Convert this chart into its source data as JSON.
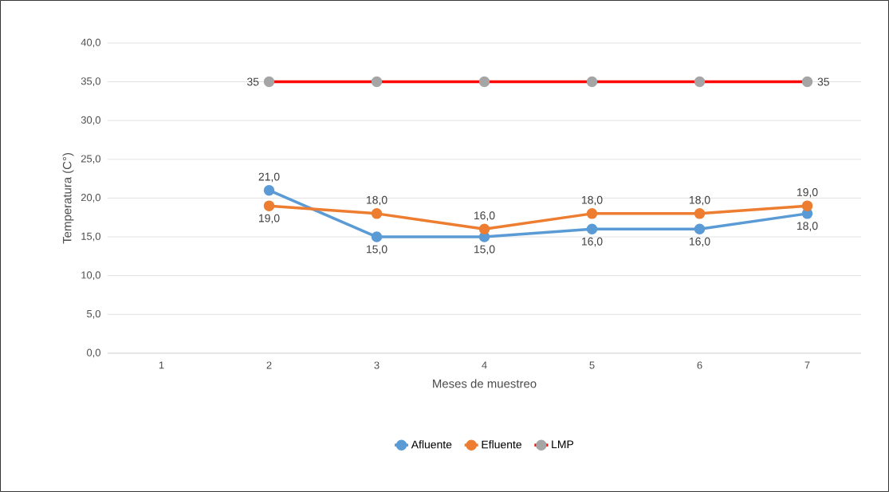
{
  "chart_data": {
    "type": "line",
    "xlabel": "Meses de muestreo",
    "ylabel": "Temperatura (C°)",
    "categories": [
      "1",
      "2",
      "3",
      "4",
      "5",
      "6",
      "7"
    ],
    "series": [
      {
        "name": "Afluente",
        "color": "#5b9bd5",
        "values": [
          null,
          21,
          15,
          15,
          16,
          16,
          18
        ],
        "value_labels": [
          null,
          "21,0",
          "15,0",
          "15,0",
          "16,0",
          "16,0",
          "18,0"
        ]
      },
      {
        "name": "Efluente",
        "color": "#ed7d31",
        "values": [
          null,
          19,
          18,
          16,
          18,
          18,
          19
        ],
        "value_labels": [
          null,
          "19,0",
          "18,0",
          "16,0",
          "18,0",
          "18,0",
          "19,0"
        ]
      },
      {
        "name": "LMP",
        "color": "#ff0000",
        "colors": [
          null,
          "#a5a5a5",
          "#a5a5a5",
          "#a5a5a5",
          "#a5a5a5",
          "#a5a5a5",
          "#a5a5a5"
        ],
        "values": [
          null,
          35,
          35,
          35,
          35,
          35,
          35
        ],
        "value_labels": [
          null,
          "35",
          null,
          null,
          null,
          null,
          "35"
        ]
      }
    ],
    "ylim": [
      0,
      40
    ],
    "yticks": [
      {
        "value": 0,
        "label": "0,0"
      },
      {
        "value": 5,
        "label": "5,0"
      },
      {
        "value": 10,
        "label": "10,0"
      },
      {
        "value": 15,
        "label": "15,0"
      },
      {
        "value": 20,
        "label": "20,0"
      },
      {
        "value": 25,
        "label": "25,0"
      },
      {
        "value": 30,
        "label": "30,0"
      },
      {
        "value": 35,
        "label": "35,0"
      },
      {
        "value": 40,
        "label": "40,0"
      }
    ],
    "grid": "y",
    "legend": "bottom",
    "marker": "circle",
    "line_style": "solid"
  }
}
